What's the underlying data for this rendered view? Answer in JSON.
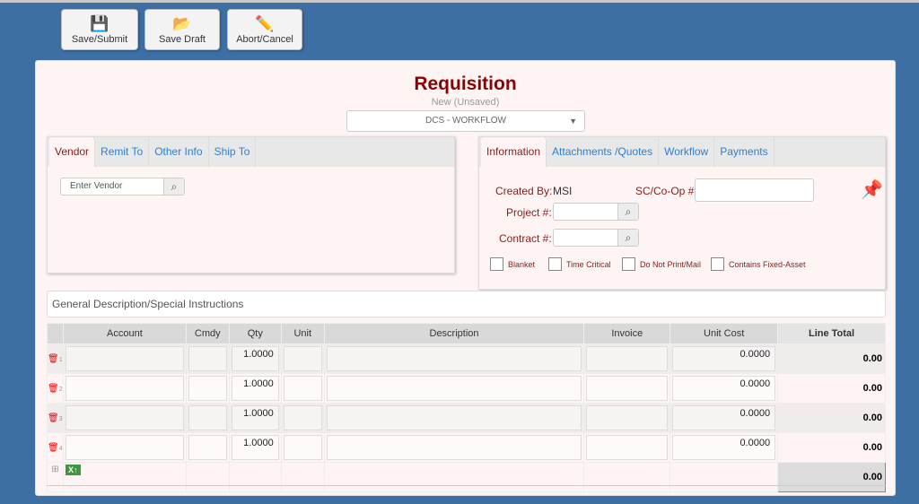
{
  "toolbar": {
    "save_submit": "Save/Submit",
    "save_draft": "Save Draft",
    "abort_cancel": "Abort/Cancel"
  },
  "header": {
    "title": "Requisition",
    "status": "New (Unsaved)",
    "workflow_select": "DCS - WORKFLOW"
  },
  "vendor_panel": {
    "tabs": [
      "Vendor",
      "Remit To",
      "Other Info",
      "Ship To"
    ],
    "active_tab": "Vendor",
    "vendor_placeholder": "Enter Vendor"
  },
  "info_panel": {
    "tabs": [
      "Information",
      "Attachments /Quotes",
      "Workflow",
      "Payments"
    ],
    "active_tab": "Information",
    "created_by_label": "Created By:",
    "created_by_value": "MSI",
    "sc_coop_label": "SC/Co-Op #",
    "project_label": "Project #:",
    "contract_label": "Contract #:",
    "checkboxes": [
      {
        "label": "Blanket",
        "checked": false
      },
      {
        "label": "Time Critical",
        "checked": false
      },
      {
        "label": "Do Not Print/Mail",
        "checked": false
      },
      {
        "label": "Contains Fixed-Asset",
        "checked": false
      }
    ]
  },
  "general_description_placeholder": "General Description/Special Instructions",
  "lines": {
    "columns": [
      "Account",
      "Cmdy",
      "Qty",
      "Unit",
      "Description",
      "Invoice",
      "Unit Cost",
      "Line Total"
    ],
    "rows": [
      {
        "n": "1",
        "qty": "1.0000",
        "unit_cost": "0.0000",
        "line_total": "0.00"
      },
      {
        "n": "2",
        "qty": "1.0000",
        "unit_cost": "0.0000",
        "line_total": "0.00"
      },
      {
        "n": "3",
        "qty": "1.0000",
        "unit_cost": "0.0000",
        "line_total": "0.00"
      },
      {
        "n": "4",
        "qty": "1.0000",
        "unit_cost": "0.0000",
        "line_total": "0.00"
      }
    ],
    "grand_total": "0.00"
  }
}
